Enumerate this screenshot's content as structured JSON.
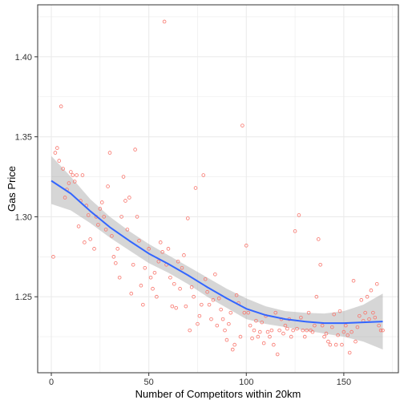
{
  "chart_data": {
    "type": "scatter",
    "xlabel": "Number of Competitors within 20km",
    "ylabel": "Gas Price",
    "xlim": [
      -7,
      178
    ],
    "ylim": [
      1.2025,
      1.4325
    ],
    "x_ticks": [
      0,
      50,
      100,
      150
    ],
    "x_tick_labels": [
      "0",
      "50",
      "100",
      "150"
    ],
    "y_ticks": [
      1.25,
      1.3,
      1.35,
      1.4
    ],
    "y_tick_labels": [
      "1.25",
      "1.30",
      "1.35",
      "1.40"
    ],
    "grid": true,
    "legend": "none",
    "colors": {
      "points": "#f8766d",
      "smooth_line": "#3366ff",
      "ribbon": "#999999",
      "grid": "#ebebeb",
      "panel_border": "#333333"
    },
    "points": [
      [
        1,
        1.275
      ],
      [
        2,
        1.34
      ],
      [
        3,
        1.343
      ],
      [
        4,
        1.335
      ],
      [
        5,
        1.369
      ],
      [
        6,
        1.33
      ],
      [
        7,
        1.312
      ],
      [
        8,
        1.317
      ],
      [
        9,
        1.321
      ],
      [
        10,
        1.328
      ],
      [
        11,
        1.326
      ],
      [
        12,
        1.322
      ],
      [
        13,
        1.326
      ],
      [
        14,
        1.294
      ],
      [
        15,
        1.31
      ],
      [
        16,
        1.326
      ],
      [
        17,
        1.284
      ],
      [
        18,
        1.307
      ],
      [
        19,
        1.301
      ],
      [
        20,
        1.286
      ],
      [
        22,
        1.28
      ],
      [
        23,
        1.3
      ],
      [
        24,
        1.295
      ],
      [
        25,
        1.305
      ],
      [
        26,
        1.309
      ],
      [
        27,
        1.3
      ],
      [
        28,
        1.292
      ],
      [
        29,
        1.319
      ],
      [
        30,
        1.34
      ],
      [
        31,
        1.288
      ],
      [
        32,
        1.275
      ],
      [
        33,
        1.271
      ],
      [
        34,
        1.28
      ],
      [
        35,
        1.262
      ],
      [
        36,
        1.3
      ],
      [
        37,
        1.325
      ],
      [
        38,
        1.31
      ],
      [
        39,
        1.292
      ],
      [
        40,
        1.312
      ],
      [
        41,
        1.252
      ],
      [
        42,
        1.27
      ],
      [
        43,
        1.342
      ],
      [
        44,
        1.3
      ],
      [
        45,
        1.285
      ],
      [
        46,
        1.257
      ],
      [
        47,
        1.245
      ],
      [
        48,
        1.268
      ],
      [
        50,
        1.28
      ],
      [
        51,
        1.262
      ],
      [
        52,
        1.255
      ],
      [
        53,
        1.265
      ],
      [
        54,
        1.25
      ],
      [
        55,
        1.272
      ],
      [
        56,
        1.284
      ],
      [
        57,
        1.278
      ],
      [
        58,
        1.422
      ],
      [
        59,
        1.27
      ],
      [
        60,
        1.28
      ],
      [
        61,
        1.262
      ],
      [
        62,
        1.244
      ],
      [
        63,
        1.258
      ],
      [
        64,
        1.243
      ],
      [
        65,
        1.272
      ],
      [
        66,
        1.255
      ],
      [
        67,
        1.268
      ],
      [
        68,
        1.276
      ],
      [
        69,
        1.244
      ],
      [
        70,
        1.299
      ],
      [
        71,
        1.229
      ],
      [
        72,
        1.256
      ],
      [
        73,
        1.25
      ],
      [
        74,
        1.318
      ],
      [
        75,
        1.233
      ],
      [
        76,
        1.238
      ],
      [
        77,
        1.245
      ],
      [
        78,
        1.326
      ],
      [
        79,
        1.261
      ],
      [
        80,
        1.253
      ],
      [
        81,
        1.245
      ],
      [
        82,
        1.236
      ],
      [
        83,
        1.248
      ],
      [
        84,
        1.264
      ],
      [
        85,
        1.232
      ],
      [
        86,
        1.249
      ],
      [
        87,
        1.242
      ],
      [
        88,
        1.236
      ],
      [
        89,
        1.229
      ],
      [
        90,
        1.223
      ],
      [
        91,
        1.233
      ],
      [
        92,
        1.24
      ],
      [
        93,
        1.217
      ],
      [
        94,
        1.22
      ],
      [
        95,
        1.251
      ],
      [
        96,
        1.246
      ],
      [
        97,
        1.225
      ],
      [
        98,
        1.357
      ],
      [
        99,
        1.24
      ],
      [
        100,
        1.282
      ],
      [
        101,
        1.24
      ],
      [
        102,
        1.232
      ],
      [
        103,
        1.224
      ],
      [
        104,
        1.229
      ],
      [
        105,
        1.235
      ],
      [
        106,
        1.225
      ],
      [
        107,
        1.228
      ],
      [
        108,
        1.234
      ],
      [
        109,
        1.221
      ],
      [
        110,
        1.238
      ],
      [
        111,
        1.228
      ],
      [
        112,
        1.225
      ],
      [
        113,
        1.229
      ],
      [
        114,
        1.22
      ],
      [
        115,
        1.24
      ],
      [
        116,
        1.214
      ],
      [
        117,
        1.229
      ],
      [
        118,
        1.236
      ],
      [
        119,
        1.227
      ],
      [
        120,
        1.232
      ],
      [
        121,
        1.23
      ],
      [
        122,
        1.236
      ],
      [
        123,
        1.225
      ],
      [
        124,
        1.229
      ],
      [
        125,
        1.291
      ],
      [
        126,
        1.23
      ],
      [
        127,
        1.301
      ],
      [
        128,
        1.237
      ],
      [
        129,
        1.229
      ],
      [
        130,
        1.225
      ],
      [
        131,
        1.229
      ],
      [
        132,
        1.24
      ],
      [
        133,
        1.229
      ],
      [
        134,
        1.228
      ],
      [
        135,
        1.232
      ],
      [
        136,
        1.25
      ],
      [
        137,
        1.286
      ],
      [
        138,
        1.27
      ],
      [
        139,
        1.232
      ],
      [
        140,
        1.225
      ],
      [
        141,
        1.227
      ],
      [
        142,
        1.222
      ],
      [
        143,
        1.22
      ],
      [
        144,
        1.231
      ],
      [
        145,
        1.239
      ],
      [
        146,
        1.22
      ],
      [
        147,
        1.226
      ],
      [
        148,
        1.241
      ],
      [
        149,
        1.22
      ],
      [
        150,
        1.228
      ],
      [
        151,
        1.232
      ],
      [
        152,
        1.226
      ],
      [
        153,
        1.215
      ],
      [
        154,
        1.228
      ],
      [
        155,
        1.26
      ],
      [
        156,
        1.222
      ],
      [
        157,
        1.231
      ],
      [
        158,
        1.238
      ],
      [
        159,
        1.248
      ],
      [
        160,
        1.235
      ],
      [
        161,
        1.24
      ],
      [
        162,
        1.25
      ],
      [
        163,
        1.236
      ],
      [
        164,
        1.254
      ],
      [
        165,
        1.24
      ],
      [
        166,
        1.237
      ],
      [
        167,
        1.258
      ],
      [
        168,
        1.232
      ],
      [
        169,
        1.229
      ],
      [
        170,
        1.229
      ]
    ],
    "smooth": {
      "method": "loess",
      "x": [
        0,
        10,
        20,
        30,
        40,
        50,
        60,
        70,
        80,
        90,
        100,
        110,
        120,
        130,
        140,
        150,
        160,
        170
      ],
      "y": [
        1.3225,
        1.3145,
        1.3035,
        1.2935,
        1.285,
        1.277,
        1.2705,
        1.2635,
        1.256,
        1.249,
        1.2425,
        1.2385,
        1.236,
        1.2345,
        1.2335,
        1.2335,
        1.234,
        1.2345
      ],
      "ribbon_upper": [
        1.338,
        1.325,
        1.311,
        1.3,
        1.291,
        1.283,
        1.276,
        1.269,
        1.262,
        1.255,
        1.249,
        1.244,
        1.241,
        1.24,
        1.2395,
        1.241,
        1.245,
        1.252
      ],
      "ribbon_lower": [
        1.308,
        1.304,
        1.296,
        1.287,
        1.279,
        1.271,
        1.265,
        1.258,
        1.25,
        1.243,
        1.236,
        1.233,
        1.231,
        1.229,
        1.227,
        1.225,
        1.222,
        1.217
      ]
    }
  }
}
